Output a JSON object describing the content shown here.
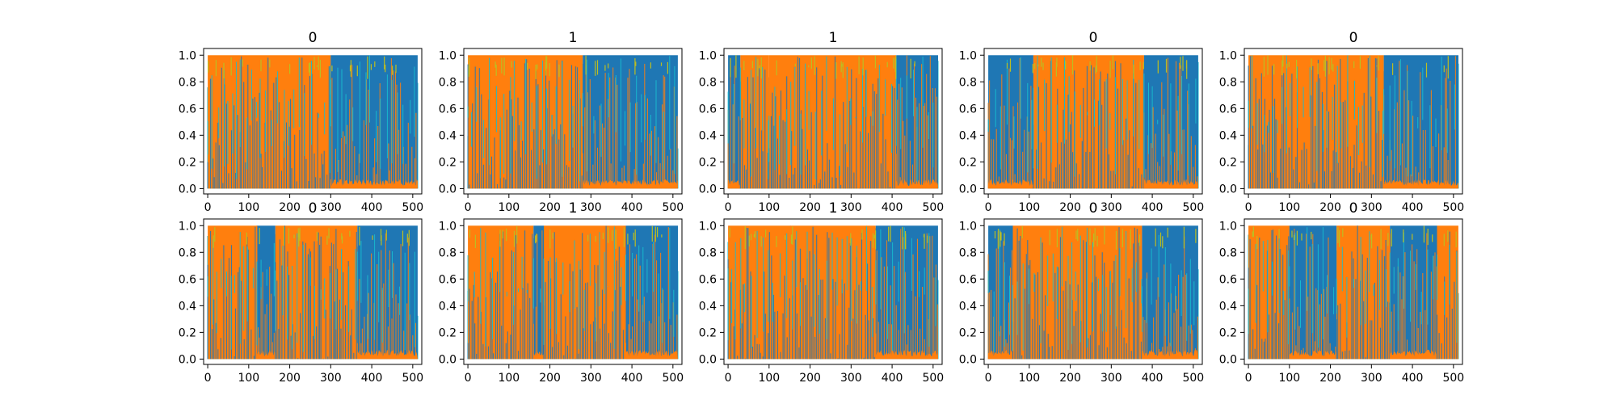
{
  "chart_data": {
    "type": "line",
    "description_of_figure": "",
    "colors": {
      "dominant_a": "#1f77b4",
      "dominant_b": "#ff7f0e",
      "minor": [
        "#17becf",
        "#bcbd22",
        "#2ca02c",
        "#d62728",
        "#9467bd",
        "#8c564b",
        "#e377c2",
        "#7f7f7f"
      ]
    },
    "panels": [
      {
        "title": "0",
        "xlim": [
          -10,
          522
        ],
        "ylim": [
          -0.04,
          1.05
        ],
        "x_ticks": [
          "0",
          "100",
          "200",
          "300",
          "400",
          "500"
        ],
        "y_ticks": [
          "0.0",
          "0.2",
          "0.4",
          "0.6",
          "0.8",
          "1.0"
        ],
        "segments": [
          {
            "x": [
              0,
              300
            ],
            "dominant": "dominant_b"
          },
          {
            "x": [
              300,
              512
            ],
            "dominant": "dominant_a"
          }
        ]
      },
      {
        "title": "1",
        "xlim": [
          -10,
          522
        ],
        "ylim": [
          -0.04,
          1.05
        ],
        "x_ticks": [
          "0",
          "100",
          "200",
          "300",
          "400",
          "500"
        ],
        "y_ticks": [
          "0.0",
          "0.2",
          "0.4",
          "0.6",
          "0.8",
          "1.0"
        ],
        "segments": [
          {
            "x": [
              0,
              280
            ],
            "dominant": "dominant_b"
          },
          {
            "x": [
              280,
              512
            ],
            "dominant": "dominant_a"
          }
        ]
      },
      {
        "title": "1",
        "xlim": [
          -10,
          522
        ],
        "ylim": [
          -0.04,
          1.05
        ],
        "x_ticks": [
          "0",
          "100",
          "200",
          "300",
          "400",
          "500"
        ],
        "y_ticks": [
          "0.0",
          "0.2",
          "0.4",
          "0.6",
          "0.8",
          "1.0"
        ],
        "segments": [
          {
            "x": [
              0,
              30
            ],
            "dominant": "dominant_a"
          },
          {
            "x": [
              30,
              100
            ],
            "dominant": "dominant_b"
          },
          {
            "x": [
              100,
              410
            ],
            "dominant": "dominant_b"
          },
          {
            "x": [
              410,
              512
            ],
            "dominant": "dominant_a"
          }
        ]
      },
      {
        "title": "0",
        "xlim": [
          -10,
          522
        ],
        "ylim": [
          -0.04,
          1.05
        ],
        "x_ticks": [
          "0",
          "100",
          "200",
          "300",
          "400",
          "500"
        ],
        "y_ticks": [
          "0.0",
          "0.2",
          "0.4",
          "0.6",
          "0.8",
          "1.0"
        ],
        "segments": [
          {
            "x": [
              0,
              110
            ],
            "dominant": "dominant_a"
          },
          {
            "x": [
              110,
              380
            ],
            "dominant": "dominant_b"
          },
          {
            "x": [
              380,
              512
            ],
            "dominant": "dominant_a"
          }
        ]
      },
      {
        "title": "0",
        "xlim": [
          -10,
          522
        ],
        "ylim": [
          -0.04,
          1.05
        ],
        "x_ticks": [
          "0",
          "100",
          "200",
          "300",
          "400",
          "500"
        ],
        "y_ticks": [
          "0.0",
          "0.2",
          "0.4",
          "0.6",
          "0.8",
          "1.0"
        ],
        "segments": [
          {
            "x": [
              0,
              330
            ],
            "dominant": "dominant_b"
          },
          {
            "x": [
              330,
              512
            ],
            "dominant": "dominant_a"
          }
        ]
      },
      {
        "title": "0",
        "xlim": [
          -10,
          522
        ],
        "ylim": [
          -0.04,
          1.05
        ],
        "x_ticks": [
          "0",
          "100",
          "200",
          "300",
          "400",
          "500"
        ],
        "y_ticks": [
          "0.0",
          "0.2",
          "0.4",
          "0.6",
          "0.8",
          "1.0"
        ],
        "segments": [
          {
            "x": [
              0,
              120
            ],
            "dominant": "dominant_b"
          },
          {
            "x": [
              120,
              165
            ],
            "dominant": "dominant_a"
          },
          {
            "x": [
              165,
              365
            ],
            "dominant": "dominant_b"
          },
          {
            "x": [
              365,
              512
            ],
            "dominant": "dominant_a"
          }
        ]
      },
      {
        "title": "1",
        "xlim": [
          -10,
          522
        ],
        "ylim": [
          -0.04,
          1.05
        ],
        "x_ticks": [
          "0",
          "100",
          "200",
          "300",
          "400",
          "500"
        ],
        "y_ticks": [
          "0.0",
          "0.2",
          "0.4",
          "0.6",
          "0.8",
          "1.0"
        ],
        "segments": [
          {
            "x": [
              0,
              160
            ],
            "dominant": "dominant_b"
          },
          {
            "x": [
              160,
              185
            ],
            "dominant": "dominant_a"
          },
          {
            "x": [
              185,
              385
            ],
            "dominant": "dominant_b"
          },
          {
            "x": [
              385,
              512
            ],
            "dominant": "dominant_a"
          }
        ]
      },
      {
        "title": "1",
        "xlim": [
          -10,
          522
        ],
        "ylim": [
          -0.04,
          1.05
        ],
        "x_ticks": [
          "0",
          "100",
          "200",
          "300",
          "400",
          "500"
        ],
        "y_ticks": [
          "0.0",
          "0.2",
          "0.4",
          "0.6",
          "0.8",
          "1.0"
        ],
        "segments": [
          {
            "x": [
              0,
              360
            ],
            "dominant": "dominant_b"
          },
          {
            "x": [
              360,
              512
            ],
            "dominant": "dominant_a"
          }
        ]
      },
      {
        "title": "0",
        "xlim": [
          -10,
          522
        ],
        "ylim": [
          -0.04,
          1.05
        ],
        "x_ticks": [
          "0",
          "100",
          "200",
          "300",
          "400",
          "500"
        ],
        "y_ticks": [
          "0.0",
          "0.2",
          "0.4",
          "0.6",
          "0.8",
          "1.0"
        ],
        "segments": [
          {
            "x": [
              0,
              60
            ],
            "dominant": "dominant_a"
          },
          {
            "x": [
              60,
              375
            ],
            "dominant": "dominant_b"
          },
          {
            "x": [
              375,
              512
            ],
            "dominant": "dominant_a"
          }
        ]
      },
      {
        "title": "0",
        "xlim": [
          -10,
          522
        ],
        "ylim": [
          -0.04,
          1.05
        ],
        "x_ticks": [
          "0",
          "100",
          "200",
          "300",
          "400",
          "500"
        ],
        "y_ticks": [
          "0.0",
          "0.2",
          "0.4",
          "0.6",
          "0.8",
          "1.0"
        ],
        "segments": [
          {
            "x": [
              0,
              100
            ],
            "dominant": "dominant_b"
          },
          {
            "x": [
              100,
              215
            ],
            "dominant": "dominant_a"
          },
          {
            "x": [
              215,
              345
            ],
            "dominant": "dominant_b"
          },
          {
            "x": [
              345,
              460
            ],
            "dominant": "dominant_a"
          },
          {
            "x": [
              460,
              512
            ],
            "dominant": "dominant_b"
          }
        ]
      }
    ]
  }
}
